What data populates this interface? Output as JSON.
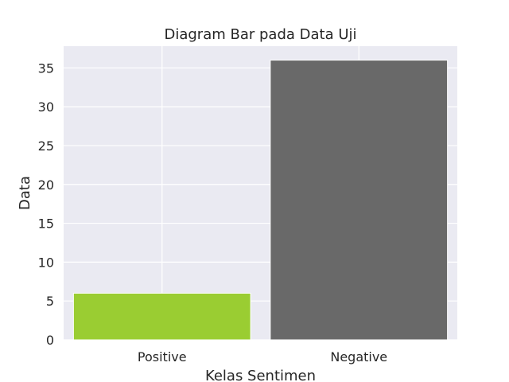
{
  "chart_data": {
    "type": "bar",
    "title": "Diagram Bar pada Data Uji",
    "xlabel": "Kelas Sentimen",
    "ylabel": "Data",
    "categories": [
      "Positive",
      "Negative"
    ],
    "values": [
      6,
      36
    ],
    "colors": [
      "#9acd32",
      "#696969"
    ],
    "ylim": [
      0,
      37.8
    ],
    "yticks": [
      0,
      5,
      10,
      15,
      20,
      25,
      30,
      35
    ],
    "grid": true,
    "background": "#eaeaf2"
  }
}
